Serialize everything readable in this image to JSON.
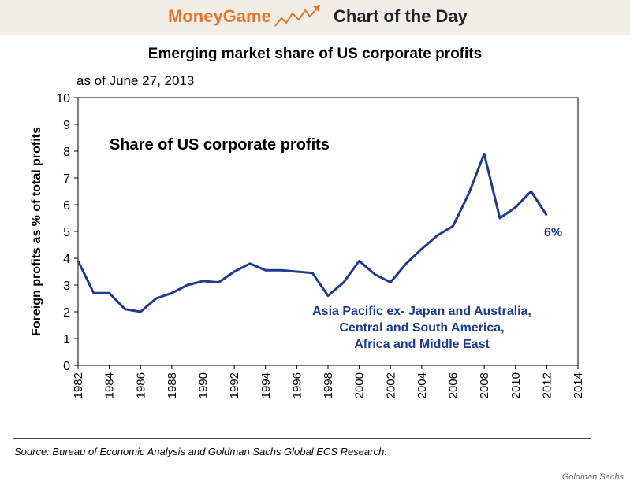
{
  "banner": {
    "left_label": "MoneyGame",
    "right_label": "Chart of the Day",
    "logo_icon": "rising-chart-arrow-icon",
    "left_color": "#e5772d",
    "background": "#f2ede6"
  },
  "footer": {
    "source": "Source: Bureau of Economic Analysis and Goldman Sachs Global ECS Research.",
    "credit": "Goldman Sachs"
  },
  "chart_data": {
    "type": "line",
    "title": "Emerging market share of US corporate profits",
    "subtitle": "as of June 27, 2013",
    "inner_title": "Share of US corporate profits",
    "xlabel": "",
    "ylabel": "Foreign profits as % of total profits",
    "xlim": [
      1982,
      2014
    ],
    "ylim": [
      0,
      10
    ],
    "x_ticks": [
      1982,
      1984,
      1986,
      1988,
      1990,
      1992,
      1994,
      1996,
      1998,
      2000,
      2002,
      2004,
      2006,
      2008,
      2010,
      2012,
      2014
    ],
    "x_tick_labels": [
      "1982",
      "1984",
      "1986",
      "1988",
      "1990",
      "1992",
      "1994",
      "1996",
      "1998",
      "2000",
      "2002",
      "2004",
      "2006",
      "2008",
      "2010",
      "2012",
      "2014"
    ],
    "y_ticks": [
      0,
      1,
      2,
      3,
      4,
      5,
      6,
      7,
      8,
      9,
      10
    ],
    "y_tick_labels": [
      "0",
      "1",
      "2",
      "3",
      "4",
      "5",
      "6",
      "7",
      "8",
      "9",
      "10"
    ],
    "grid": false,
    "line_color": "#1f3b8c",
    "series": [
      {
        "name": "Asia Pacific ex- Japan and Australia, Central and South America, Africa and Middle East",
        "x": [
          1982,
          1983,
          1984,
          1985,
          1986,
          1987,
          1988,
          1989,
          1990,
          1991,
          1992,
          1993,
          1994,
          1995,
          1996,
          1997,
          1998,
          1999,
          2000,
          2001,
          2002,
          2003,
          2004,
          2005,
          2006,
          2007,
          2008,
          2009,
          2010,
          2011,
          2012
        ],
        "values": [
          3.9,
          2.7,
          2.7,
          2.1,
          2.0,
          2.5,
          2.7,
          3.0,
          3.15,
          3.1,
          3.5,
          3.8,
          3.55,
          3.55,
          3.5,
          3.45,
          2.6,
          3.1,
          3.9,
          3.4,
          3.1,
          3.8,
          4.35,
          4.85,
          5.2,
          6.4,
          7.9,
          5.5,
          5.9,
          6.5,
          5.6
        ]
      }
    ],
    "annotations": {
      "end_label": "6%",
      "series_label_lines": [
        "Asia Pacific ex- Japan and Australia,",
        "Central and South America,",
        "Africa and Middle East"
      ]
    }
  }
}
